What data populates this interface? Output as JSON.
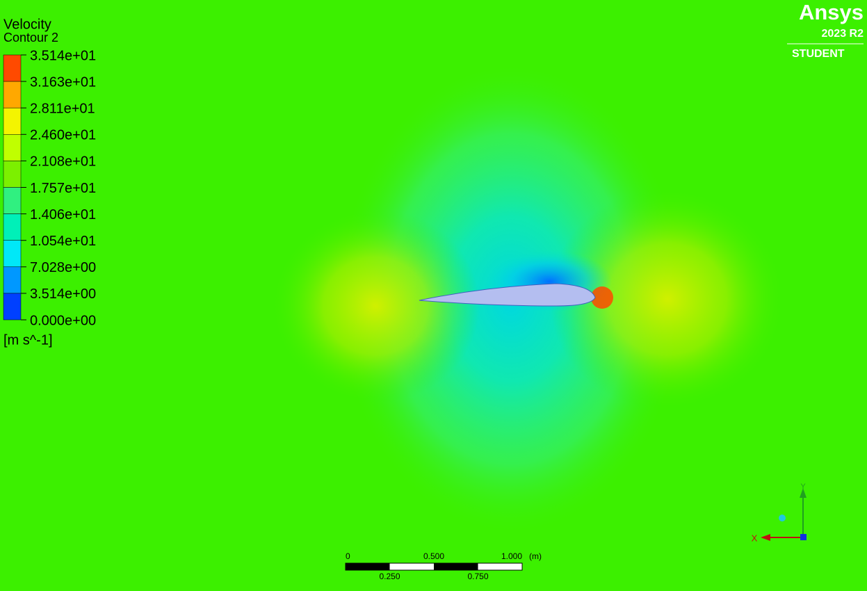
{
  "legend": {
    "title": "Velocity",
    "subtitle": "Contour 2",
    "levels": [
      "3.514e+01",
      "3.163e+01",
      "2.811e+01",
      "2.460e+01",
      "2.108e+01",
      "1.757e+01",
      "1.406e+01",
      "1.054e+01",
      "7.028e+00",
      "3.514e+00",
      "0.000e+00"
    ],
    "colors": [
      "#ff4a00",
      "#ffa800",
      "#f4f400",
      "#c0ff00",
      "#7cf000",
      "#30f080",
      "#00f0b8",
      "#00e8f8",
      "#0098ff",
      "#0040ff"
    ],
    "unit": "[m s^-1]"
  },
  "logo": {
    "brand": "Ansys",
    "version": "2023 R2",
    "edition": "STUDENT"
  },
  "scale_bar": {
    "labels_top": [
      "0",
      "0.500",
      "1.000"
    ],
    "unit": "(m)",
    "labels_bottom": [
      "0.250",
      "0.750"
    ]
  },
  "triad": {
    "y": "Y",
    "x": "X"
  }
}
